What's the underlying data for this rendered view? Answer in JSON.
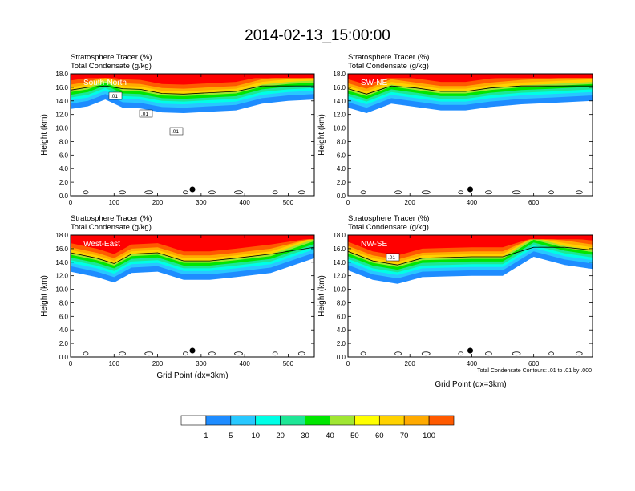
{
  "title": "2014-02-13_15:00:00",
  "x_axis_title": "Grid Point (dx=3km)",
  "contour_note": "Total Condensate Contours: .01 to .01 by .000",
  "colors": {
    "levels": [
      "#ffffff",
      "#1e8cff",
      "#28c8ff",
      "#00ffe6",
      "#1ee696",
      "#00e600",
      "#a0e632",
      "#ffff00",
      "#ffd200",
      "#ffaa00",
      "#ff5a00",
      "#ff0000"
    ],
    "contour": "#000000"
  },
  "colorbar": {
    "labels": [
      "1",
      "5",
      "10",
      "20",
      "30",
      "40",
      "50",
      "60",
      "70",
      "100"
    ]
  },
  "chart_data": [
    {
      "type": "heatmap",
      "panel_label": "South-North",
      "header": [
        "Stratosphere Tracer   (%)",
        "Total Condensate   (g/kg)"
      ],
      "ylabel": "Height (km)",
      "ylim": [
        0,
        18
      ],
      "xlim": [
        0,
        560
      ],
      "x_ticks": [
        "0",
        "100",
        "200",
        "300",
        "400",
        "500"
      ],
      "y_ticks": [
        "0.0",
        "2.0",
        "4.0",
        "6.0",
        "8.0",
        "10.0",
        "12.0",
        "14.0",
        "16.0",
        "18.0"
      ],
      "marker_x": 280,
      "tracer_base_km": [
        {
          "x": 0,
          "z": 12.8
        },
        {
          "x": 40,
          "z": 13.2
        },
        {
          "x": 80,
          "z": 14.2
        },
        {
          "x": 120,
          "z": 13.0
        },
        {
          "x": 160,
          "z": 12.9
        },
        {
          "x": 210,
          "z": 12.3
        },
        {
          "x": 260,
          "z": 12.2
        },
        {
          "x": 320,
          "z": 12.4
        },
        {
          "x": 380,
          "z": 12.6
        },
        {
          "x": 440,
          "z": 13.6
        },
        {
          "x": 500,
          "z": 14.0
        },
        {
          "x": 560,
          "z": 14.2
        }
      ],
      "contour_labels": [
        ".01",
        ".01",
        ".01"
      ]
    },
    {
      "type": "heatmap",
      "panel_label": "SW-NE",
      "header": [
        "Stratosphere Tracer   (%)",
        "Total Condensate   (g/kg)"
      ],
      "ylabel": "Height (km)",
      "ylim": [
        0,
        18
      ],
      "xlim": [
        0,
        790
      ],
      "x_ticks": [
        "0",
        "200",
        "400",
        "600"
      ],
      "y_ticks": [
        "0.0",
        "2.0",
        "4.0",
        "6.0",
        "8.0",
        "10.0",
        "12.0",
        "14.0",
        "16.0",
        "18.0"
      ],
      "marker_x": 395,
      "tracer_base_km": [
        {
          "x": 0,
          "z": 13.0
        },
        {
          "x": 60,
          "z": 12.2
        },
        {
          "x": 140,
          "z": 13.6
        },
        {
          "x": 220,
          "z": 13.1
        },
        {
          "x": 300,
          "z": 12.6
        },
        {
          "x": 380,
          "z": 12.6
        },
        {
          "x": 460,
          "z": 13.1
        },
        {
          "x": 560,
          "z": 13.5
        },
        {
          "x": 660,
          "z": 13.7
        },
        {
          "x": 790,
          "z": 14.0
        }
      ],
      "contour_labels": []
    },
    {
      "type": "heatmap",
      "panel_label": "West-East",
      "header": [
        "Stratosphere Tracer   (%)",
        "Total Condensate   (g/kg)"
      ],
      "ylabel": "Height (km)",
      "ylim": [
        0,
        18
      ],
      "xlim": [
        0,
        560
      ],
      "x_ticks": [
        "0",
        "100",
        "200",
        "300",
        "400",
        "500"
      ],
      "y_ticks": [
        "0.0",
        "2.0",
        "4.0",
        "6.0",
        "8.0",
        "10.0",
        "12.0",
        "14.0",
        "16.0",
        "18.0"
      ],
      "marker_x": 280,
      "tracer_base_km": [
        {
          "x": 0,
          "z": 12.6
        },
        {
          "x": 60,
          "z": 11.8
        },
        {
          "x": 100,
          "z": 11.0
        },
        {
          "x": 140,
          "z": 12.4
        },
        {
          "x": 200,
          "z": 12.6
        },
        {
          "x": 260,
          "z": 11.4
        },
        {
          "x": 320,
          "z": 11.4
        },
        {
          "x": 380,
          "z": 11.8
        },
        {
          "x": 460,
          "z": 12.4
        },
        {
          "x": 560,
          "z": 14.6
        }
      ],
      "contour_labels": []
    },
    {
      "type": "heatmap",
      "panel_label": "NW-SE",
      "header": [
        "Stratosphere Tracer   (%)",
        "Total Condensate   (g/kg)"
      ],
      "ylabel": "Height (km)",
      "ylim": [
        0,
        18
      ],
      "xlim": [
        0,
        790
      ],
      "x_ticks": [
        "0",
        "200",
        "400",
        "600"
      ],
      "y_ticks": [
        "0.0",
        "2.0",
        "4.0",
        "6.0",
        "8.0",
        "10.0",
        "12.0",
        "14.0",
        "16.0",
        "18.0"
      ],
      "marker_x": 395,
      "tracer_base_km": [
        {
          "x": 0,
          "z": 12.8
        },
        {
          "x": 80,
          "z": 11.4
        },
        {
          "x": 160,
          "z": 10.8
        },
        {
          "x": 240,
          "z": 11.8
        },
        {
          "x": 320,
          "z": 11.9
        },
        {
          "x": 400,
          "z": 12.0
        },
        {
          "x": 500,
          "z": 12.0
        },
        {
          "x": 600,
          "z": 14.8
        },
        {
          "x": 700,
          "z": 13.6
        },
        {
          "x": 790,
          "z": 13.0
        }
      ],
      "contour_labels": [
        ".01"
      ]
    }
  ]
}
